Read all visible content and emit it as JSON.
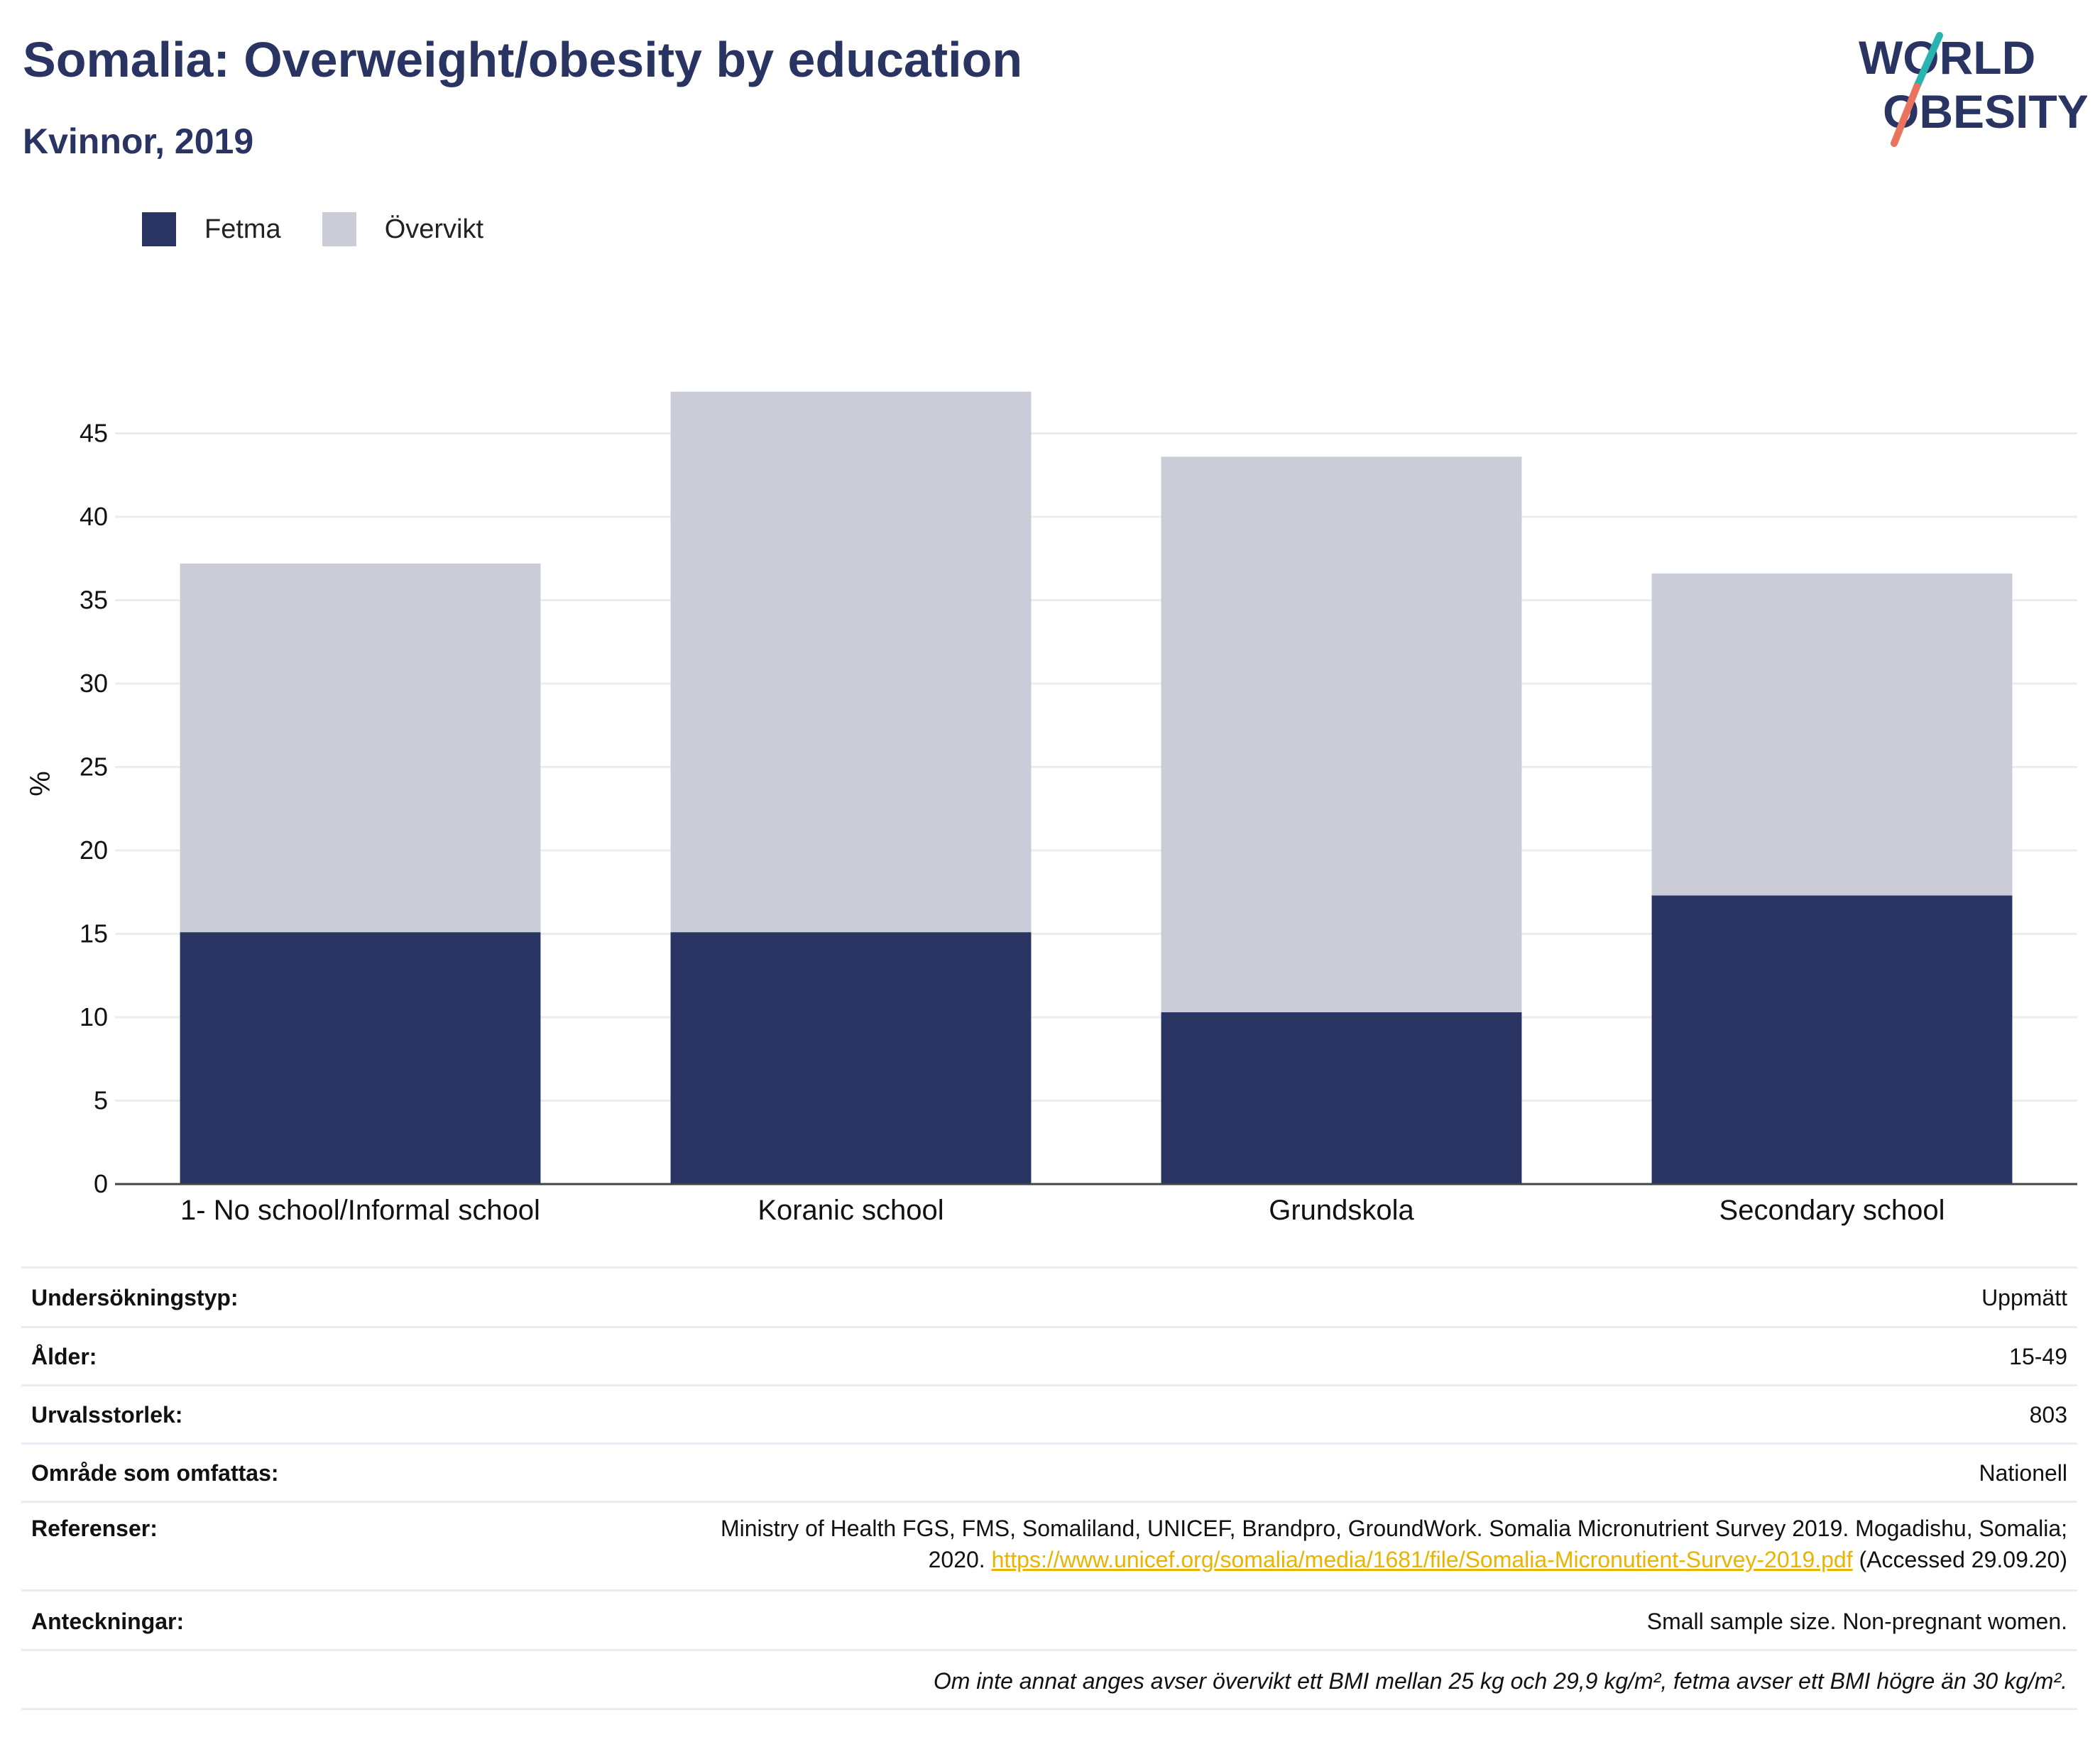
{
  "header": {
    "title": "Somalia: Overweight/obesity by education",
    "subtitle": "Kvinnor, 2019"
  },
  "logo": {
    "line1": "WORLD",
    "line2": "OBESITY",
    "colors": {
      "text": "#293462",
      "slash_top": "#2bb3b1",
      "slash_bottom": "#e9735c"
    }
  },
  "chart_data": {
    "type": "bar",
    "stacked": true,
    "categories": [
      "1- No school/Informal school",
      "Koranic school",
      "Grundskola",
      "Secondary school"
    ],
    "series": [
      {
        "name": "Fetma",
        "color": "#293462",
        "values": [
          15.1,
          15.1,
          10.3,
          17.3
        ]
      },
      {
        "name": "Övervikt",
        "color": "#caccd8",
        "values": [
          22.1,
          32.4,
          33.3,
          19.3
        ]
      }
    ],
    "ylabel": "%",
    "ylim": [
      0,
      48
    ],
    "yticks": [
      0,
      5,
      10,
      15,
      20,
      25,
      30,
      35,
      40,
      45
    ],
    "grid": true,
    "legend": "top-left"
  },
  "meta": {
    "survey_type": {
      "label": "Undersökningstyp:",
      "value": "Uppmätt"
    },
    "age": {
      "label": "Ålder:",
      "value": "15-49"
    },
    "sample_size": {
      "label": "Urvalsstorlek:",
      "value": "803"
    },
    "area": {
      "label": "Område som omfattas:",
      "value": "Nationell"
    },
    "references": {
      "label": "Referenser:",
      "text_line1": "Ministry of Health FGS, FMS, Somaliland, UNICEF, Brandpro, GroundWork. Somalia Micronutrient Survey 2019. Mogadishu, Somalia;",
      "text_line2_prefix": "2020.",
      "link": "https://www.unicef.org/somalia/media/1681/file/Somalia-Micronutient-Survey-2019.pdf",
      "text_line2_suffix": "(Accessed 29.09.20)"
    },
    "notes": {
      "label": "Anteckningar:",
      "value": "Small sample size. Non-pregnant women."
    },
    "footnote": "Om inte annat anges avser övervikt ett BMI mellan 25 kg och 29,9 kg/m², fetma avser ett BMI högre än 30 kg/m²."
  }
}
